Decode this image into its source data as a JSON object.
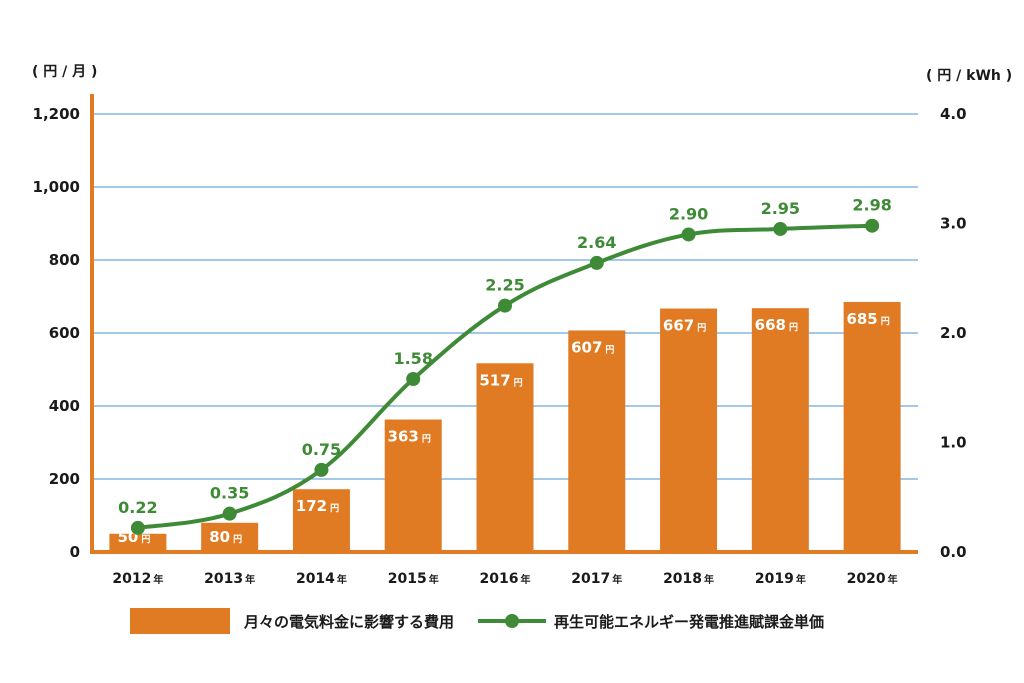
{
  "chart_data": {
    "type": "bar",
    "categories": [
      "2012",
      "2013",
      "2014",
      "2015",
      "2016",
      "2017",
      "2018",
      "2019",
      "2020"
    ],
    "category_suffix": "年",
    "series": [
      {
        "name": "月々の電気料金に影響する費用",
        "type": "bar",
        "axis": "left",
        "values": [
          50,
          80,
          172,
          363,
          517,
          607,
          667,
          668,
          685
        ],
        "value_suffix": "円",
        "color": "#e07b24"
      },
      {
        "name": "再生可能エネルギー発電推進賦課金単価",
        "type": "line",
        "axis": "right",
        "values": [
          0.22,
          0.35,
          0.75,
          1.58,
          2.25,
          2.64,
          2.9,
          2.95,
          2.98
        ],
        "color": "#3e8a36"
      }
    ],
    "y_left": {
      "unit": "( 円 / 月 )",
      "ylim": [
        0,
        1200
      ],
      "ticks": [
        0,
        200,
        400,
        600,
        800,
        1000,
        1200
      ],
      "tick_labels": [
        "0",
        "200",
        "400",
        "600",
        "800",
        "1,000",
        "1,200"
      ]
    },
    "y_right": {
      "unit": "( 円 / kWh )",
      "ylim": [
        0,
        4.0
      ],
      "ticks": [
        0,
        1,
        2,
        3,
        4
      ],
      "tick_labels": [
        "0.0",
        "1.0",
        "2.0",
        "3.0",
        "4.0"
      ]
    },
    "grid": true,
    "legend_position": "bottom",
    "colors": {
      "bar": "#e07b24",
      "line": "#3e8a36",
      "grid": "#4a90d9",
      "left_axis": "#e07b24"
    }
  }
}
